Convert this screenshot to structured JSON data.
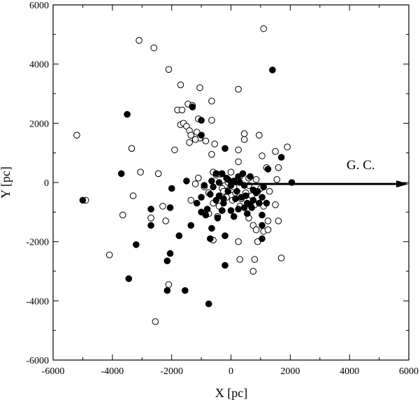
{
  "chart_data": {
    "type": "scatter",
    "xlabel": "X [pc]",
    "ylabel": "Y [pc]",
    "xlim": [
      -6000,
      6000
    ],
    "ylim": [
      -6000,
      6000
    ],
    "xticks": [
      -6000,
      -4000,
      -2000,
      0,
      2000,
      4000,
      6000
    ],
    "yticks": [
      -6000,
      -4000,
      -2000,
      0,
      2000,
      4000,
      6000
    ],
    "tick_labels_x": [
      "-6000",
      "-4000",
      "-2000",
      "0",
      "2000",
      "4000",
      "6000"
    ],
    "tick_labels_y": [
      "-6000",
      "-4000",
      "-2000",
      "0",
      "2000",
      "4000",
      "6000"
    ],
    "grid": false,
    "annotation": {
      "text": "G. C.",
      "arrow_from": [
        0,
        -50
      ],
      "arrow_to": [
        6000,
        -50
      ],
      "text_at": [
        3900,
        450
      ]
    },
    "series": [
      {
        "marker": "open-circle",
        "points": [
          [
            1100,
            5200
          ],
          [
            -3100,
            4800
          ],
          [
            -2600,
            4550
          ],
          [
            -2100,
            3820
          ],
          [
            -1700,
            3300
          ],
          [
            -1050,
            3200
          ],
          [
            250,
            3150
          ],
          [
            -650,
            2750
          ],
          [
            -1450,
            2650
          ],
          [
            -1300,
            2600
          ],
          [
            -1800,
            2450
          ],
          [
            -1650,
            2450
          ],
          [
            -650,
            2100
          ],
          [
            -1100,
            2150
          ],
          [
            -1700,
            1950
          ],
          [
            -1600,
            2000
          ],
          [
            -1500,
            1900
          ],
          [
            -1400,
            1750
          ],
          [
            -1350,
            1600
          ],
          [
            -1150,
            1700
          ],
          [
            -1050,
            1500
          ],
          [
            -1400,
            1350
          ],
          [
            -1200,
            1450
          ],
          [
            -850,
            1400
          ],
          [
            -550,
            1300
          ],
          [
            450,
            1650
          ],
          [
            450,
            1450
          ],
          [
            950,
            1600
          ],
          [
            250,
            1100
          ],
          [
            -1900,
            1100
          ],
          [
            -650,
            950
          ],
          [
            1050,
            900
          ],
          [
            1500,
            1050
          ],
          [
            1900,
            1200
          ],
          [
            -5200,
            1600
          ],
          [
            -3350,
            1150
          ],
          [
            250,
            700
          ],
          [
            1600,
            500
          ],
          [
            1200,
            500
          ],
          [
            -3050,
            350
          ],
          [
            -2450,
            300
          ],
          [
            -600,
            350
          ],
          [
            -500,
            250
          ],
          [
            -350,
            280
          ],
          [
            300,
            200
          ],
          [
            600,
            150
          ],
          [
            850,
            100
          ],
          [
            1550,
            100
          ],
          [
            -1100,
            150
          ],
          [
            -1200,
            -50
          ],
          [
            -900,
            -150
          ],
          [
            -200,
            -100
          ],
          [
            -300,
            -200
          ],
          [
            1000,
            -200
          ],
          [
            1300,
            -300
          ],
          [
            -4900,
            -600
          ],
          [
            -3300,
            -450
          ],
          [
            -2300,
            -800
          ],
          [
            -1350,
            -600
          ],
          [
            -600,
            -700
          ],
          [
            300,
            -800
          ],
          [
            800,
            -750
          ],
          [
            1100,
            -800
          ],
          [
            1500,
            -750
          ],
          [
            -3650,
            -1100
          ],
          [
            -2700,
            -1200
          ],
          [
            -2200,
            -1300
          ],
          [
            -750,
            -1050
          ],
          [
            -450,
            -1150
          ],
          [
            600,
            -1200
          ],
          [
            1250,
            -1300
          ],
          [
            1600,
            -1300
          ],
          [
            750,
            -1450
          ],
          [
            850,
            -1600
          ],
          [
            1100,
            -1650
          ],
          [
            1250,
            -1600
          ],
          [
            -600,
            -1950
          ],
          [
            250,
            -2000
          ],
          [
            900,
            -2000
          ],
          [
            -4100,
            -2450
          ],
          [
            300,
            -2600
          ],
          [
            800,
            -2600
          ],
          [
            1700,
            -2550
          ],
          [
            750,
            -3000
          ],
          [
            -2100,
            -3450
          ],
          [
            -2550,
            -4700
          ],
          [
            -250,
            -300
          ],
          [
            -150,
            -500
          ],
          [
            50,
            -600
          ],
          [
            150,
            -350
          ],
          [
            350,
            -550
          ],
          [
            500,
            -350
          ],
          [
            700,
            -450
          ],
          [
            -750,
            -350
          ],
          [
            -400,
            -800
          ],
          [
            0,
            -250
          ],
          [
            100,
            -150
          ],
          [
            -100,
            0
          ],
          [
            600,
            -100
          ],
          [
            0,
            350
          ]
        ]
      },
      {
        "marker": "filled-circle",
        "points": [
          [
            1400,
            3800
          ],
          [
            -3500,
            2300
          ],
          [
            -1300,
            2550
          ],
          [
            -1000,
            2100
          ],
          [
            -1000,
            1600
          ],
          [
            -200,
            1150
          ],
          [
            1250,
            450
          ],
          [
            -1000,
            -1000
          ],
          [
            -3700,
            300
          ],
          [
            1700,
            850
          ],
          [
            -5000,
            -600
          ],
          [
            2050,
            0
          ],
          [
            -1500,
            50
          ],
          [
            -2000,
            -200
          ],
          [
            -2700,
            -900
          ],
          [
            -2050,
            -850
          ],
          [
            -2700,
            -1450
          ],
          [
            -1750,
            -1800
          ],
          [
            -3200,
            -2100
          ],
          [
            -1350,
            -1450
          ],
          [
            -2050,
            -2400
          ],
          [
            -2150,
            -2650
          ],
          [
            -3450,
            -3250
          ],
          [
            -2150,
            -3650
          ],
          [
            -1550,
            -3650
          ],
          [
            -750,
            -4100
          ],
          [
            -200,
            -2800
          ],
          [
            -700,
            -1900
          ],
          [
            -200,
            -1800
          ],
          [
            -650,
            -1550
          ],
          [
            1050,
            -1900
          ],
          [
            1050,
            -1450
          ],
          [
            -1150,
            -700
          ],
          [
            -1000,
            -500
          ],
          [
            -900,
            -100
          ],
          [
            -700,
            -400
          ],
          [
            -600,
            -150
          ],
          [
            -500,
            -600
          ],
          [
            -650,
            50
          ],
          [
            -500,
            300
          ],
          [
            -300,
            300
          ],
          [
            -100,
            100
          ],
          [
            100,
            50
          ],
          [
            300,
            0
          ],
          [
            450,
            -100
          ],
          [
            650,
            200
          ],
          [
            750,
            -250
          ],
          [
            900,
            -300
          ],
          [
            1100,
            -150
          ],
          [
            1200,
            -700
          ],
          [
            -400,
            -450
          ],
          [
            -250,
            -700
          ],
          [
            0,
            -950
          ],
          [
            250,
            -900
          ],
          [
            550,
            -700
          ],
          [
            750,
            -600
          ],
          [
            1050,
            -500
          ],
          [
            -800,
            -900
          ],
          [
            -450,
            -1200
          ],
          [
            100,
            -1150
          ],
          [
            -300,
            -950
          ],
          [
            -150,
            150
          ],
          [
            0,
            -100
          ],
          [
            200,
            -300
          ],
          [
            350,
            -500
          ],
          [
            500,
            -450
          ],
          [
            650,
            -750
          ],
          [
            850,
            -350
          ],
          [
            -250,
            -550
          ],
          [
            400,
            300
          ],
          [
            1050,
            -1100
          ],
          [
            -100,
            -300
          ],
          [
            550,
            -1050
          ],
          [
            -850,
            -1100
          ],
          [
            700,
            -850
          ],
          [
            150,
            -550
          ],
          [
            -400,
            0
          ],
          [
            250,
            200
          ],
          [
            450,
            -850
          ],
          [
            950,
            -700
          ]
        ]
      }
    ]
  }
}
